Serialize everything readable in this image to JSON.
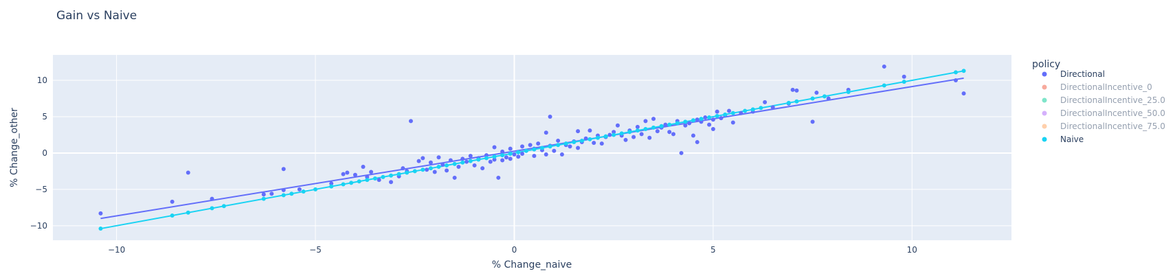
{
  "chart_data": {
    "type": "scatter",
    "title": "Gain vs Naive",
    "xlabel": "% Change_naive",
    "ylabel": "% Change_other",
    "xlim": [
      -11.6,
      12.5
    ],
    "ylim": [
      -12,
      13.5
    ],
    "xticks": [
      -10,
      -5,
      0,
      5,
      10
    ],
    "xtick_labels": [
      "−10",
      "−5",
      "0",
      "5",
      "10"
    ],
    "yticks": [
      -10,
      -5,
      0,
      5,
      10
    ],
    "ytick_labels": [
      "−10",
      "−5",
      "0",
      "5",
      "10"
    ],
    "grid": true,
    "legend": {
      "title": "policy",
      "position": "right",
      "entries": [
        {
          "name": "Directional",
          "color": "#636efa",
          "visible": true
        },
        {
          "name": "DirectionalIncentive_0",
          "color": "#EF553B",
          "visible": false
        },
        {
          "name": "DirectionalIncentive_25.0",
          "color": "#00cc96",
          "visible": false
        },
        {
          "name": "DirectionalIncentive_50.0",
          "color": "#ab63fa",
          "visible": false
        },
        {
          "name": "DirectionalIncentive_75.0",
          "color": "#FFA15A",
          "visible": false
        },
        {
          "name": "Naive",
          "color": "#19d3f3",
          "visible": true
        }
      ]
    },
    "series": [
      {
        "name": "Directional",
        "color": "#636efa",
        "trendline": {
          "x": [
            -10.4,
            11.3
          ],
          "y": [
            -9.0,
            10.3
          ]
        },
        "points": [
          [
            -10.4,
            -8.3
          ],
          [
            -8.6,
            -6.7
          ],
          [
            -8.2,
            -2.7
          ],
          [
            -7.6,
            -6.3
          ],
          [
            -6.3,
            -5.7
          ],
          [
            -6.1,
            -5.6
          ],
          [
            -5.8,
            -2.2
          ],
          [
            -5.8,
            -5.1
          ],
          [
            -5.4,
            -5.0
          ],
          [
            -4.6,
            -4.2
          ],
          [
            -4.3,
            -2.9
          ],
          [
            -4.2,
            -2.7
          ],
          [
            -4.0,
            -3.0
          ],
          [
            -3.8,
            -1.9
          ],
          [
            -3.7,
            -3.3
          ],
          [
            -3.6,
            -2.6
          ],
          [
            -3.4,
            -3.7
          ],
          [
            -3.1,
            -4.0
          ],
          [
            -2.9,
            -3.2
          ],
          [
            -2.8,
            -2.1
          ],
          [
            -2.7,
            -2.5
          ],
          [
            -2.6,
            4.4
          ],
          [
            -2.4,
            -1.1
          ],
          [
            -2.3,
            -0.7
          ],
          [
            -2.2,
            -2.3
          ],
          [
            -2.1,
            -1.3
          ],
          [
            -2.0,
            -2.6
          ],
          [
            -1.9,
            -0.6
          ],
          [
            -1.8,
            -1.6
          ],
          [
            -1.7,
            -2.4
          ],
          [
            -1.6,
            -1.0
          ],
          [
            -1.5,
            -3.4
          ],
          [
            -1.4,
            -1.9
          ],
          [
            -1.3,
            -0.8
          ],
          [
            -1.2,
            -1.2
          ],
          [
            -1.1,
            -0.4
          ],
          [
            -1.0,
            -1.7
          ],
          [
            -0.9,
            -0.7
          ],
          [
            -0.8,
            -2.1
          ],
          [
            -0.7,
            -0.3
          ],
          [
            -0.6,
            -1.2
          ],
          [
            -0.5,
            0.8
          ],
          [
            -0.5,
            -0.9
          ],
          [
            -0.4,
            -3.4
          ],
          [
            -0.3,
            0.2
          ],
          [
            -0.3,
            -1.0
          ],
          [
            -0.2,
            -0.6
          ],
          [
            -0.1,
            -0.8
          ],
          [
            -0.1,
            0.6
          ],
          [
            0.0,
            -0.2
          ],
          [
            0.1,
            -0.5
          ],
          [
            0.2,
            0.9
          ],
          [
            0.2,
            -0.1
          ],
          [
            0.3,
            0.3
          ],
          [
            0.4,
            1.1
          ],
          [
            0.5,
            -0.4
          ],
          [
            0.5,
            0.6
          ],
          [
            0.6,
            1.3
          ],
          [
            0.7,
            0.4
          ],
          [
            0.8,
            2.8
          ],
          [
            0.8,
            -0.2
          ],
          [
            0.9,
            1.0
          ],
          [
            0.9,
            5.0
          ],
          [
            1.0,
            0.3
          ],
          [
            1.1,
            1.7
          ],
          [
            1.2,
            -0.2
          ],
          [
            1.3,
            1.1
          ],
          [
            1.4,
            0.9
          ],
          [
            1.5,
            1.6
          ],
          [
            1.6,
            0.7
          ],
          [
            1.6,
            3.0
          ],
          [
            1.7,
            1.5
          ],
          [
            1.8,
            2.0
          ],
          [
            1.9,
            3.1
          ],
          [
            2.0,
            1.4
          ],
          [
            2.1,
            2.4
          ],
          [
            2.2,
            1.3
          ],
          [
            2.3,
            2.2
          ],
          [
            2.4,
            2.5
          ],
          [
            2.5,
            2.9
          ],
          [
            2.6,
            3.8
          ],
          [
            2.7,
            2.4
          ],
          [
            2.8,
            1.8
          ],
          [
            2.9,
            3.1
          ],
          [
            3.0,
            2.2
          ],
          [
            3.1,
            3.6
          ],
          [
            3.2,
            2.6
          ],
          [
            3.3,
            4.4
          ],
          [
            3.4,
            2.1
          ],
          [
            3.5,
            4.7
          ],
          [
            3.6,
            3.0
          ],
          [
            3.7,
            3.5
          ],
          [
            3.8,
            3.9
          ],
          [
            3.9,
            2.9
          ],
          [
            4.0,
            2.6
          ],
          [
            4.1,
            4.4
          ],
          [
            4.2,
            0.0
          ],
          [
            4.3,
            3.8
          ],
          [
            4.4,
            4.1
          ],
          [
            4.5,
            2.4
          ],
          [
            4.6,
            4.6
          ],
          [
            4.6,
            1.5
          ],
          [
            4.7,
            4.3
          ],
          [
            4.8,
            4.9
          ],
          [
            4.9,
            3.9
          ],
          [
            5.0,
            4.6
          ],
          [
            5.0,
            3.3
          ],
          [
            5.1,
            5.7
          ],
          [
            5.2,
            4.8
          ],
          [
            5.3,
            5.2
          ],
          [
            5.4,
            5.8
          ],
          [
            5.5,
            4.2
          ],
          [
            5.7,
            5.5
          ],
          [
            6.0,
            5.7
          ],
          [
            6.3,
            7.0
          ],
          [
            6.5,
            6.3
          ],
          [
            6.9,
            6.8
          ],
          [
            7.0,
            8.7
          ],
          [
            7.1,
            8.6
          ],
          [
            7.5,
            4.3
          ],
          [
            7.6,
            8.3
          ],
          [
            7.9,
            7.5
          ],
          [
            8.4,
            8.7
          ],
          [
            9.3,
            11.9
          ],
          [
            9.8,
            10.5
          ],
          [
            11.1,
            10.0
          ],
          [
            11.3,
            8.2
          ]
        ]
      },
      {
        "name": "Naive",
        "color": "#19d3f3",
        "trendline": {
          "x": [
            -10.4,
            11.3
          ],
          "y": [
            -10.4,
            11.3
          ]
        },
        "points": [
          [
            -10.4,
            -10.4
          ],
          [
            -8.6,
            -8.6
          ],
          [
            -8.2,
            -8.2
          ],
          [
            -7.6,
            -7.6
          ],
          [
            -7.3,
            -7.3
          ],
          [
            -6.3,
            -6.3
          ],
          [
            -5.8,
            -5.8
          ],
          [
            -5.6,
            -5.6
          ],
          [
            -5.3,
            -5.3
          ],
          [
            -5.0,
            -5.0
          ],
          [
            -4.6,
            -4.6
          ],
          [
            -4.3,
            -4.3
          ],
          [
            -4.1,
            -4.1
          ],
          [
            -3.9,
            -3.9
          ],
          [
            -3.7,
            -3.7
          ],
          [
            -3.5,
            -3.5
          ],
          [
            -3.3,
            -3.3
          ],
          [
            -3.1,
            -3.1
          ],
          [
            -2.9,
            -2.9
          ],
          [
            -2.7,
            -2.7
          ],
          [
            -2.5,
            -2.5
          ],
          [
            -2.3,
            -2.3
          ],
          [
            -2.1,
            -2.1
          ],
          [
            -1.9,
            -1.9
          ],
          [
            -1.7,
            -1.7
          ],
          [
            -1.5,
            -1.5
          ],
          [
            -1.3,
            -1.3
          ],
          [
            -1.1,
            -1.1
          ],
          [
            -0.9,
            -0.9
          ],
          [
            -0.7,
            -0.7
          ],
          [
            -0.5,
            -0.5
          ],
          [
            -0.3,
            -0.3
          ],
          [
            -0.1,
            -0.1
          ],
          [
            0.1,
            0.1
          ],
          [
            0.3,
            0.3
          ],
          [
            0.5,
            0.5
          ],
          [
            0.7,
            0.7
          ],
          [
            0.9,
            0.9
          ],
          [
            1.1,
            1.1
          ],
          [
            1.3,
            1.3
          ],
          [
            1.5,
            1.5
          ],
          [
            1.7,
            1.7
          ],
          [
            1.9,
            1.9
          ],
          [
            2.1,
            2.1
          ],
          [
            2.3,
            2.3
          ],
          [
            2.5,
            2.5
          ],
          [
            2.7,
            2.7
          ],
          [
            2.9,
            2.9
          ],
          [
            3.1,
            3.1
          ],
          [
            3.3,
            3.3
          ],
          [
            3.5,
            3.5
          ],
          [
            3.7,
            3.7
          ],
          [
            3.9,
            3.9
          ],
          [
            4.1,
            4.1
          ],
          [
            4.3,
            4.3
          ],
          [
            4.5,
            4.5
          ],
          [
            4.7,
            4.7
          ],
          [
            4.9,
            4.9
          ],
          [
            5.1,
            5.1
          ],
          [
            5.3,
            5.3
          ],
          [
            5.5,
            5.5
          ],
          [
            5.8,
            5.8
          ],
          [
            6.0,
            6.0
          ],
          [
            6.2,
            6.2
          ],
          [
            6.9,
            6.9
          ],
          [
            7.1,
            7.1
          ],
          [
            7.5,
            7.5
          ],
          [
            7.8,
            7.8
          ],
          [
            8.4,
            8.4
          ],
          [
            9.3,
            9.3
          ],
          [
            9.8,
            9.8
          ],
          [
            11.1,
            11.1
          ],
          [
            11.3,
            11.3
          ]
        ]
      }
    ]
  }
}
